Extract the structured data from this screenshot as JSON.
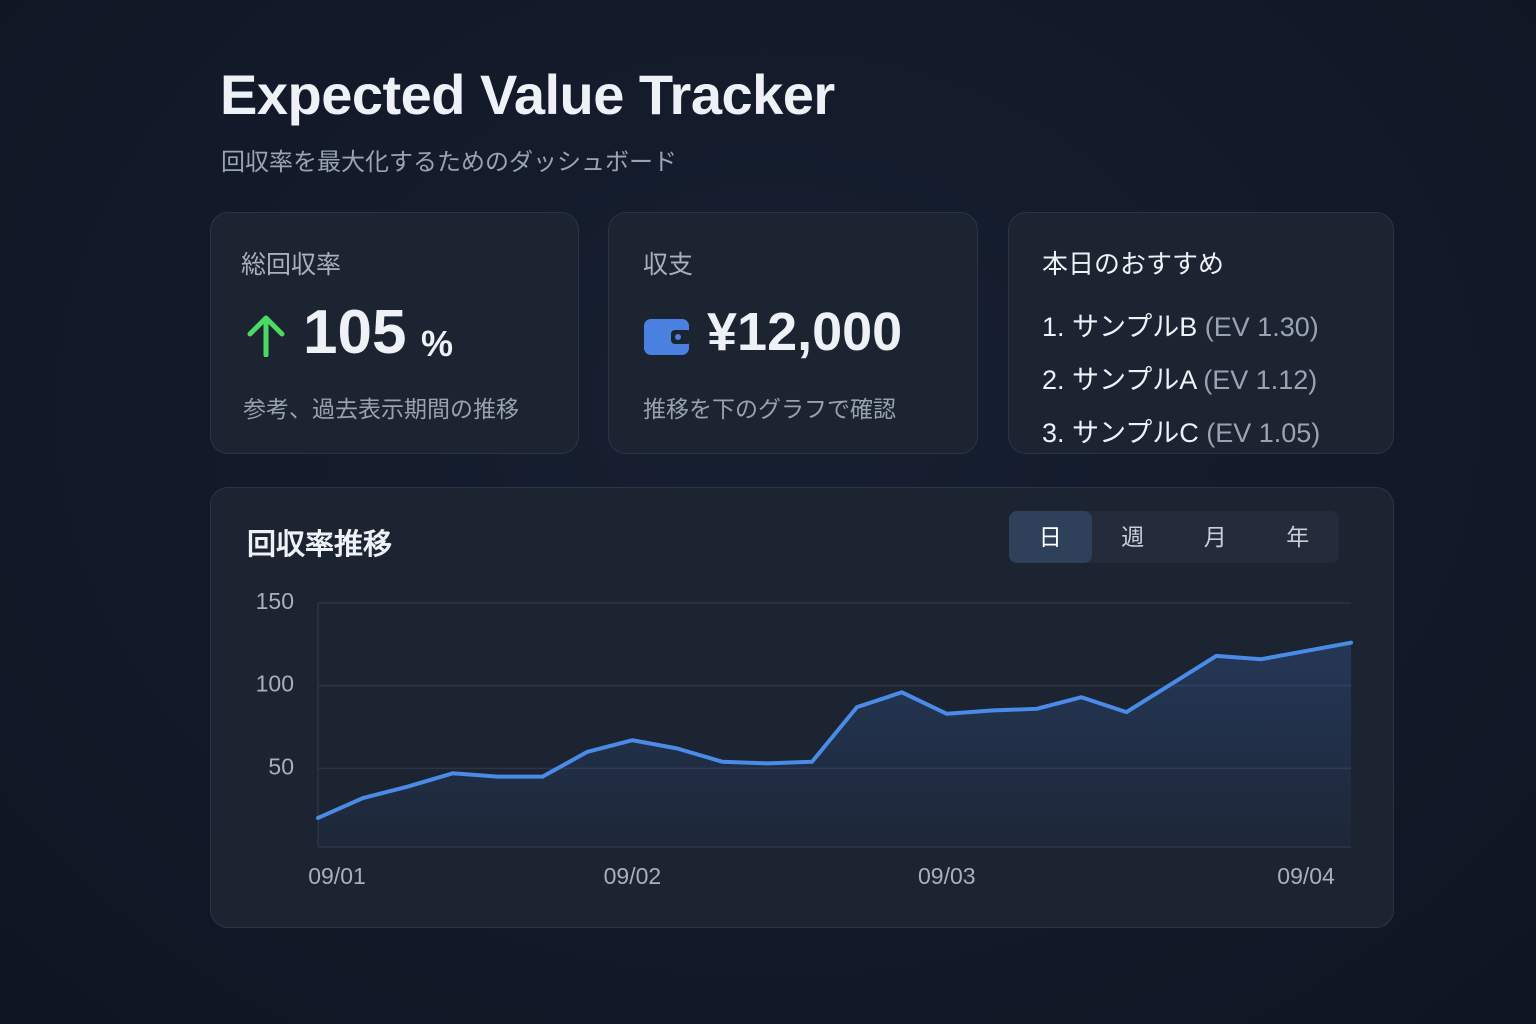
{
  "header": {
    "title": "Expected Value Tracker",
    "subtitle": "回収率を最大化するためのダッシュボード"
  },
  "cards": {
    "return_rate": {
      "label": "総回収率",
      "value": 105,
      "unit": "%",
      "note": "参考、過去表示期間の推移"
    },
    "balance": {
      "label": "収支",
      "value": "¥12,000",
      "note": "推移を下のグラフで確認"
    },
    "recommend": {
      "label": "本日のおすすめ",
      "items": [
        {
          "name": "1. サンプルB",
          "ev": "(EV 1.30)"
        },
        {
          "name": "2. サンプルA",
          "ev": "(EV 1.12)"
        },
        {
          "name": "3. サンプルC",
          "ev": "(EV 1.05)"
        }
      ]
    }
  },
  "periods": [
    "日",
    "週",
    "月",
    "年"
  ],
  "selected_period": 0,
  "chart_data": {
    "type": "line",
    "title": "回収率推移",
    "categories": [
      "09/01",
      null,
      null,
      null,
      null,
      null,
      null,
      "09/02",
      null,
      null,
      null,
      null,
      null,
      null,
      "09/03",
      null,
      null,
      null,
      null,
      null,
      null,
      null,
      "09/04",
      null
    ],
    "series": [
      {
        "name": "回収率",
        "color": "#4a8be8",
        "values": [
          20,
          32,
          39,
          47,
          45,
          45,
          60,
          67,
          62,
          54,
          53,
          54,
          87,
          96,
          83,
          85,
          86,
          93,
          84,
          101,
          118,
          116,
          121,
          126
        ]
      }
    ],
    "ylim": [
      0,
      150
    ],
    "yticks": [
      50,
      100,
      150
    ],
    "grid": true
  }
}
